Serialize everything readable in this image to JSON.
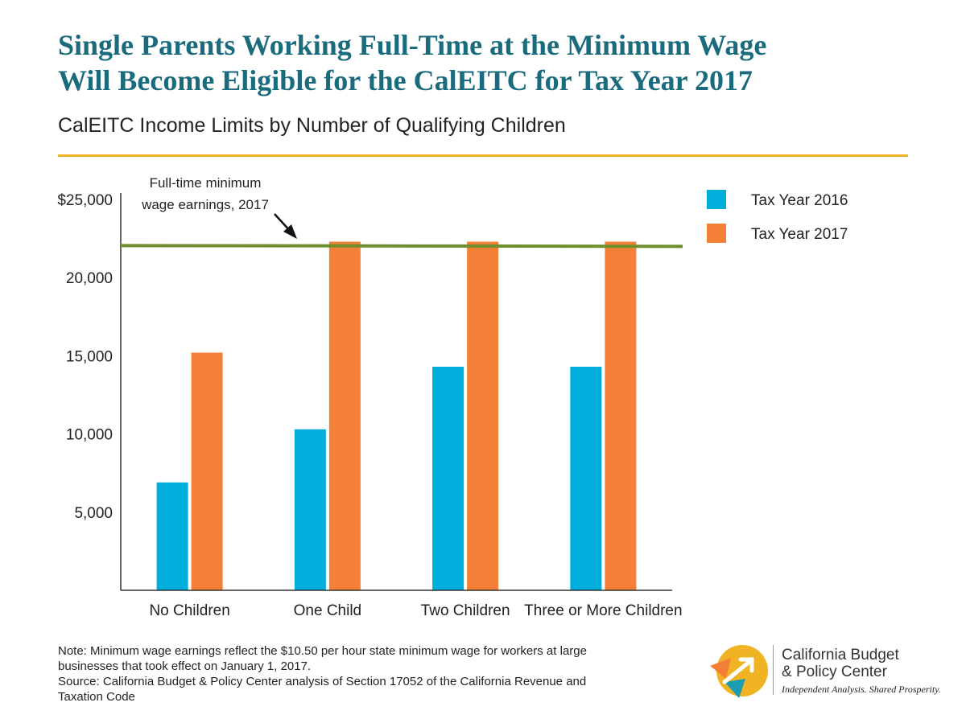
{
  "header": {
    "title_line1": "Single Parents Working Full-Time at the Minimum Wage",
    "title_line2": "Will Become Eligible for the CalEITC for Tax Year 2017",
    "subtitle": "CalEITC Income Limits by Number of Qualifying Children"
  },
  "chart_data": {
    "type": "bar",
    "categories": [
      "No Children",
      "One Child",
      "Two Children",
      "Three or More Children"
    ],
    "series": [
      {
        "name": "Tax Year 2016",
        "values": [
          6900,
          10300,
          14300,
          14300
        ],
        "color": "#00aedb"
      },
      {
        "name": "Tax Year 2017",
        "values": [
          15200,
          22300,
          22300,
          22300
        ],
        "color": "#f47f36"
      }
    ],
    "ylim": [
      0,
      25000
    ],
    "yticks": [
      {
        "value": 5000,
        "label": "5,000"
      },
      {
        "value": 10000,
        "label": "10,000"
      },
      {
        "value": 15000,
        "label": "15,000"
      },
      {
        "value": 20000,
        "label": "20,000"
      },
      {
        "value": 25000,
        "label": "$25,000"
      }
    ],
    "reference_line": {
      "value": 22050,
      "label_line1": "Full-time minimum",
      "label_line2": "wage earnings, 2017",
      "color": "#6f8f2f"
    },
    "legend_position": "top-right",
    "grid": false,
    "xlabel": "",
    "ylabel": ""
  },
  "footer": {
    "note_line1": "Note: Minimum wage earnings reflect the $10.50 per hour state minimum wage for workers at large",
    "note_line2": "businesses that took effect on January 1, 2017.",
    "note_line3": "Source: California Budget & Policy Center analysis of Section 17052 of the California Revenue and",
    "note_line4": "Taxation Code"
  },
  "logo": {
    "name_line1": "California Budget",
    "name_line2": "& Policy Center",
    "tagline": "Independent Analysis. Shared Prosperity.",
    "colors": [
      "#f0b323",
      "#f47f36",
      "#00aedb",
      "#1b6b7e"
    ]
  }
}
